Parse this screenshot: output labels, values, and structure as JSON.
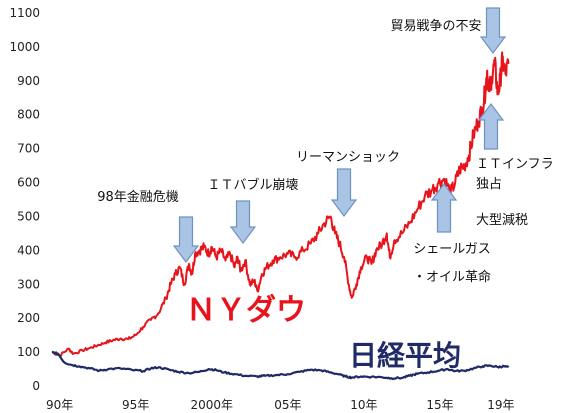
{
  "chart_data": {
    "type": "line",
    "title": "",
    "xlabel": "",
    "ylabel": "",
    "ylim": [
      0,
      1100
    ],
    "xlim": [
      1989.5,
      2019.6
    ],
    "y_ticks": [
      0,
      100,
      200,
      300,
      400,
      500,
      600,
      700,
      800,
      900,
      1000,
      1100
    ],
    "x_ticks": [
      {
        "label": "90年",
        "year": 1990
      },
      {
        "label": "95年",
        "year": 1995
      },
      {
        "label": "2000年",
        "year": 2000
      },
      {
        "label": "05年",
        "year": 2005
      },
      {
        "label": "10年",
        "year": 2010
      },
      {
        "label": "15年",
        "year": 2015
      },
      {
        "label": "19年",
        "year": 2019
      }
    ],
    "grid": false,
    "series": [
      {
        "name": "ＮＹダウ",
        "color": "#e8141b",
        "x": [
          1989.5,
          1990.0,
          1990.6,
          1990.9,
          1991.5,
          1992.0,
          1992.5,
          1993.0,
          1993.5,
          1994.0,
          1994.5,
          1995.0,
          1995.5,
          1996.0,
          1996.5,
          1997.0,
          1997.3,
          1997.6,
          1997.9,
          1998.2,
          1998.5,
          1998.7,
          1998.9,
          1999.2,
          1999.5,
          1999.8,
          2000.0,
          2000.3,
          2000.6,
          2000.9,
          2001.2,
          2001.5,
          2001.7,
          2001.9,
          2002.2,
          2002.5,
          2002.8,
          2003.0,
          2003.3,
          2003.6,
          2004.0,
          2004.5,
          2005.0,
          2005.5,
          2006.0,
          2006.5,
          2007.0,
          2007.4,
          2007.8,
          2008.1,
          2008.4,
          2008.7,
          2009.0,
          2009.2,
          2009.5,
          2009.8,
          2010.2,
          2010.5,
          2010.8,
          2011.2,
          2011.5,
          2011.7,
          2012.0,
          2012.5,
          2013.0,
          2013.5,
          2014.0,
          2014.5,
          2014.9,
          2015.3,
          2015.7,
          2016.0,
          2016.3,
          2016.6,
          2016.9,
          2017.2,
          2017.5,
          2017.8,
          2018.0,
          2018.1,
          2018.2,
          2018.4,
          2018.6,
          2018.8,
          2018.95,
          2019.1,
          2019.3,
          2019.5
        ],
        "values": [
          100,
          90,
          110,
          95,
          105,
          112,
          120,
          128,
          135,
          140,
          138,
          150,
          175,
          195,
          215,
          260,
          300,
          330,
          350,
          300,
          360,
          330,
          390,
          400,
          410,
          390,
          410,
          380,
          400,
          370,
          390,
          350,
          380,
          340,
          370,
          300,
          310,
          280,
          330,
          350,
          370,
          380,
          390,
          380,
          400,
          420,
          450,
          480,
          500,
          450,
          420,
          380,
          300,
          260,
          300,
          350,
          380,
          360,
          400,
          420,
          450,
          380,
          430,
          450,
          480,
          520,
          560,
          580,
          600,
          610,
          570,
          600,
          640,
          650,
          680,
          740,
          780,
          820,
          880,
          930,
          870,
          910,
          950,
          860,
          900,
          960,
          920,
          950
        ]
      },
      {
        "name": "日経平均",
        "color": "#1f2a66",
        "x": [
          1989.5,
          1989.9,
          1990.3,
          1990.8,
          1991.3,
          1992.0,
          1992.6,
          1993.2,
          1994.0,
          1994.8,
          1995.5,
          1996.0,
          1996.5,
          1997.2,
          1997.8,
          1998.5,
          1999.2,
          1999.8,
          2000.3,
          2000.8,
          2001.5,
          2002.2,
          2003.0,
          2003.5,
          2004.2,
          2005.0,
          2005.8,
          2006.5,
          2007.2,
          2007.8,
          2008.3,
          2008.8,
          2009.2,
          2009.8,
          2010.5,
          2011.2,
          2011.8,
          2012.5,
          2013.0,
          2013.5,
          2014.2,
          2014.9,
          2015.5,
          2016.0,
          2016.6,
          2017.2,
          2017.8,
          2018.3,
          2018.8,
          2019.2,
          2019.5
        ],
        "values": [
          100,
          95,
          70,
          62,
          58,
          52,
          45,
          50,
          52,
          47,
          44,
          52,
          55,
          48,
          42,
          38,
          42,
          50,
          47,
          40,
          35,
          30,
          28,
          30,
          32,
          35,
          42,
          48,
          46,
          40,
          35,
          28,
          25,
          28,
          27,
          26,
          23,
          24,
          30,
          36,
          40,
          45,
          50,
          44,
          45,
          52,
          58,
          60,
          56,
          58,
          55
        ]
      }
    ],
    "series_labels": [
      {
        "text": "ＮＹダウ",
        "series": 0
      },
      {
        "text": "日経平均",
        "series": 1
      }
    ],
    "annotations": [
      {
        "id": "ann-98",
        "lines": [
          "98年金融危機"
        ],
        "arrow": "down",
        "target_year": 1998.6
      },
      {
        "id": "ann-it-bubble",
        "lines": [
          "ＩＴバブル崩壊"
        ],
        "arrow": "down",
        "target_year": 2001.8
      },
      {
        "id": "ann-lehman",
        "lines": [
          "リーマンショック"
        ],
        "arrow": "down",
        "target_year": 2008.0
      },
      {
        "id": "ann-shale",
        "lines": [
          "シェールガス",
          "・オイル革命"
        ],
        "arrow": "up",
        "target_year": 2015.0
      },
      {
        "id": "ann-it-infra",
        "lines": [
          "ＩＴインフラ",
          "独占",
          "大型減税"
        ],
        "arrow": "up",
        "target_year": 2018.5
      },
      {
        "id": "ann-trade-war",
        "lines": [
          "貿易戦争の不安"
        ],
        "arrow": "down",
        "target_year": 2018.7
      }
    ]
  }
}
